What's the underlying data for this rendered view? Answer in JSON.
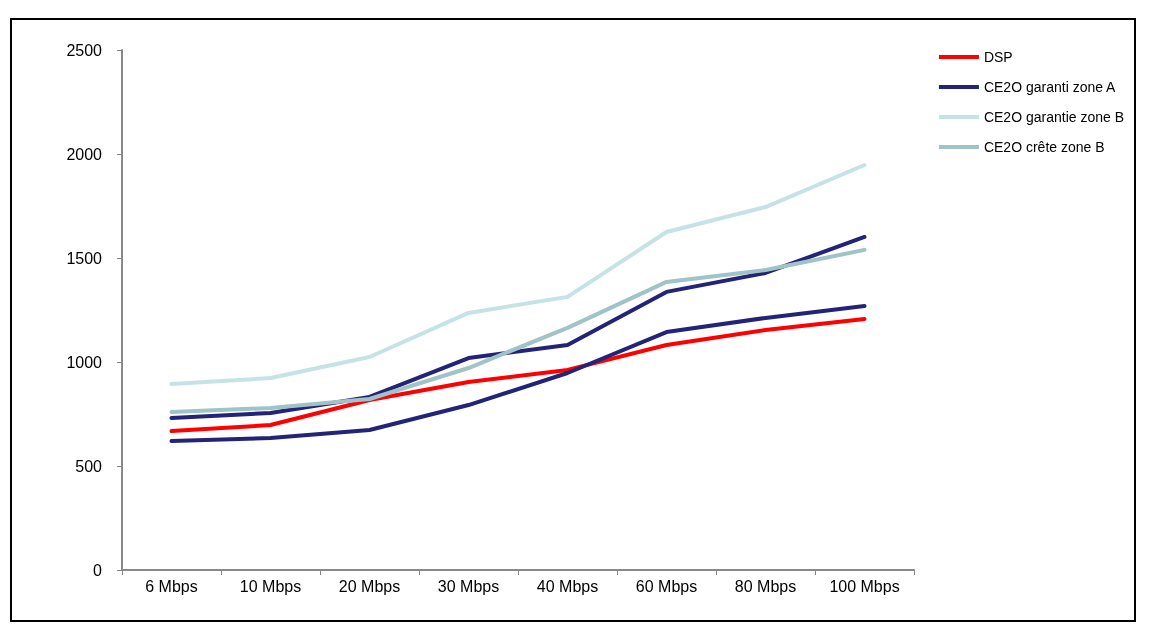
{
  "chart_data": {
    "type": "line",
    "categories": [
      "6 Mbps",
      "10 Mbps",
      "20 Mbps",
      "30 Mbps",
      "40 Mbps",
      "60 Mbps",
      "80 Mbps",
      "100 Mbps"
    ],
    "series": [
      {
        "name": "DSP",
        "color": "#ff0000",
        "values": [
          668,
          697,
          817,
          904,
          962,
          1082,
          1154,
          1207
        ]
      },
      {
        "name": "CE2O garanti zone A",
        "color": "#232378",
        "values": [
          731,
          755,
          832,
          1019,
          1082,
          1337,
          1428,
          1601
        ]
      },
      {
        "color": "#232378",
        "values": [
          620,
          635,
          673,
          793,
          947,
          1144,
          1212,
          1269
        ]
      },
      {
        "name": "CE2O garantie zone B",
        "color": "#c5e3e6",
        "values": [
          894,
          923,
          1024,
          1236,
          1313,
          1625,
          1745,
          1947
        ]
      },
      {
        "name": "CE2O crête zone B",
        "color": "#9fc3c6",
        "values": [
          760,
          779,
          822,
          971,
          1164,
          1385,
          1442,
          1539
        ]
      }
    ],
    "ylim": [
      0,
      2500
    ],
    "yticks": [
      0,
      500,
      1000,
      1500,
      2000,
      2500
    ],
    "grid": false,
    "legend": "top right",
    "marker": "none",
    "line_style": "solid"
  }
}
